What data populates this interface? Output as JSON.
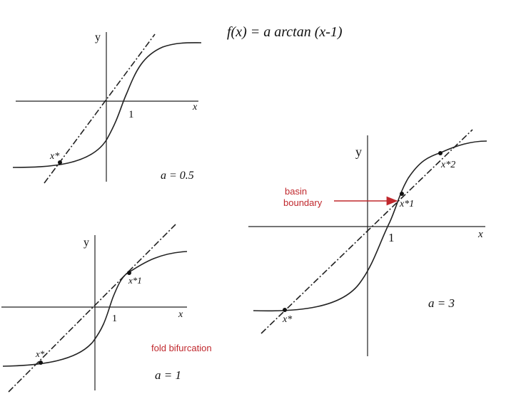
{
  "title": "f(x) = a arctan (x-1)",
  "panels": [
    {
      "id": "a05",
      "a_label": "a = 0.5",
      "y_label": "y",
      "x_label": "x",
      "one_label": "1",
      "points": [
        {
          "label": "x*"
        }
      ]
    },
    {
      "id": "a1",
      "a_label": "a = 1",
      "y_label": "y",
      "x_label": "x",
      "one_label": "1",
      "annotation": "fold bifurcation",
      "points": [
        {
          "label": "x*1"
        },
        {
          "label": "x*"
        }
      ]
    },
    {
      "id": "a3",
      "a_label": "a = 3",
      "y_label": "y",
      "x_label": "x",
      "one_label": "1",
      "annotation": "basin boundary",
      "points": [
        {
          "label": "x*2"
        },
        {
          "label": "x*1"
        },
        {
          "label": "x*"
        }
      ]
    }
  ],
  "colors": {
    "ink": "#222222",
    "arrow": "#c0282d"
  }
}
